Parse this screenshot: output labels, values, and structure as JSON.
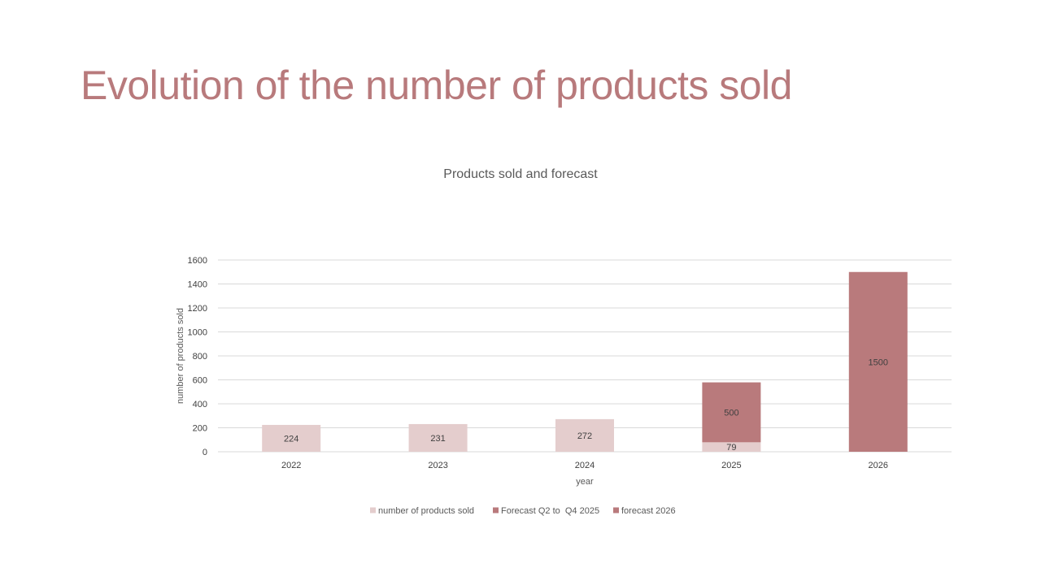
{
  "slide": {
    "title": "Evolution of the number of products sold"
  },
  "colors": {
    "title": "#b87a7c",
    "actual": "#e4cdcd",
    "forecast": "#b97a7c",
    "grid": "#d9d9d9"
  },
  "chart_data": {
    "type": "bar",
    "stacked": true,
    "title": "Products sold and forecast",
    "xlabel": "year",
    "ylabel": "number of products sold",
    "categories": [
      "2022",
      "2023",
      "2024",
      "2025",
      "2026"
    ],
    "ylim": [
      0,
      1600
    ],
    "yticks": [
      0,
      200,
      400,
      600,
      800,
      1000,
      1200,
      1400,
      1600
    ],
    "grid": true,
    "legend_position": "bottom",
    "series": [
      {
        "name": "number of products sold",
        "color": "#e4cdcd",
        "values": [
          224,
          231,
          272,
          79,
          null
        ]
      },
      {
        "name": "Forecast Q2 to  Q4 2025",
        "color": "#b97a7c",
        "values": [
          null,
          null,
          null,
          500,
          null
        ]
      },
      {
        "name": "forecast 2026",
        "color": "#b97a7c",
        "values": [
          null,
          null,
          null,
          null,
          1500
        ]
      }
    ]
  }
}
